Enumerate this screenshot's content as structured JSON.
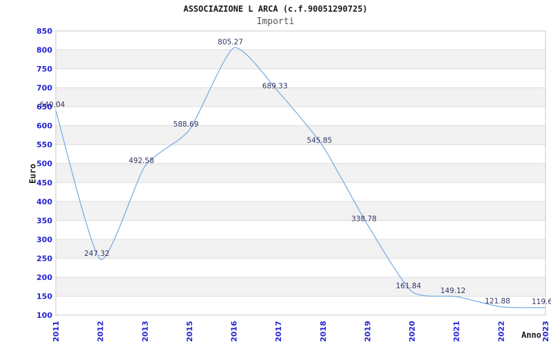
{
  "page": {
    "background": "#ffffff"
  },
  "colors": {
    "background": "#ffffff",
    "title": "#1a1a1a",
    "subtitle": "#555555",
    "axis_title": "#1a1a1a",
    "tick_label": "#2323cf",
    "data_label": "#333366",
    "line": "#76abe2",
    "plot_border": "#c9c9c9",
    "gridline": "#dcdcdc",
    "band_gray": "#f2f2f2",
    "band_white": "#ffffff"
  },
  "chart_data": {
    "type": "line",
    "title": "ASSOCIAZIONE L ARCA (c.f.90051290725)",
    "subtitle": "Importi",
    "xlabel": "Anno",
    "ylabel": "Euro",
    "categories": [
      "2011",
      "2012",
      "2013",
      "2015",
      "2016",
      "2017",
      "2018",
      "2019",
      "2020",
      "2021",
      "2022",
      "2023"
    ],
    "values": [
      640.04,
      247.32,
      492.58,
      588.69,
      805.27,
      689.33,
      545.85,
      338.78,
      161.84,
      149.12,
      121.88,
      119.6
    ],
    "point_labels": [
      "640.04",
      "247.32",
      "492.58",
      "588.69",
      "805.27",
      "689.33",
      "545.85",
      "338.78",
      "161.84",
      "149.12",
      "121.88",
      "119.6"
    ],
    "ylim": [
      100,
      850
    ],
    "ytick_step": 50,
    "grid": "alternating-horizontal-bands",
    "legend": "none"
  }
}
